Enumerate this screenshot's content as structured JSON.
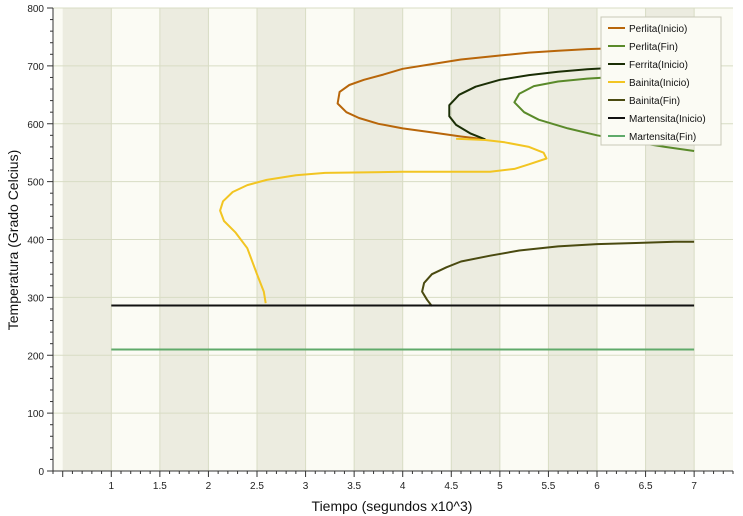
{
  "chart_data": {
    "type": "line",
    "title": "",
    "xlabel": "Tiempo (segundos x10^3)",
    "ylabel": "Temperatura (Grado Celcius)",
    "xlim": [
      0.4,
      7.4
    ],
    "ylim": [
      0,
      800
    ],
    "x_ticks": [
      "1",
      "1.5",
      "2",
      "2.5",
      "3",
      "3.5",
      "4",
      "4.5",
      "5",
      "5.5",
      "6",
      "6.5",
      "7"
    ],
    "y_ticks": [
      "0",
      "100",
      "200",
      "300",
      "400",
      "500",
      "600",
      "700",
      "800"
    ],
    "legend_position": "top-right",
    "background": {
      "stripe_light": "#fbfbf4",
      "stripe_dark": "#ecece0",
      "gridline": "#d8dcc4"
    },
    "series": [
      {
        "name": "Perlita(Inicio)",
        "color": "#b8660a",
        "x": [
          4.85,
          4.6,
          4.3,
          4.0,
          3.75,
          3.55,
          3.42,
          3.33,
          3.35,
          3.45,
          3.6,
          3.8,
          4.0,
          4.3,
          4.6,
          5.0,
          5.3,
          5.6,
          5.9,
          6.1,
          6.3
        ],
        "y": [
          573,
          578,
          585,
          592,
          600,
          610,
          620,
          635,
          655,
          667,
          676,
          685,
          695,
          703,
          711,
          718,
          723,
          726,
          729,
          730,
          731
        ]
      },
      {
        "name": "Perlita(Fin)",
        "color": "#5a8a2a",
        "x": [
          7.0,
          6.7,
          6.4,
          6.0,
          5.7,
          5.4,
          5.25,
          5.15,
          5.2,
          5.35,
          5.6,
          5.9,
          6.2,
          6.5,
          6.8
        ],
        "y": [
          553,
          560,
          568,
          580,
          592,
          607,
          620,
          637,
          652,
          665,
          673,
          678,
          681,
          682,
          683
        ]
      },
      {
        "name": "Ferrita(Inicio)",
        "color": "#1a2e05",
        "x": [
          4.85,
          4.7,
          4.55,
          4.48,
          4.48,
          4.58,
          4.75,
          5.0,
          5.3,
          5.6,
          5.9,
          6.2,
          6.5,
          6.8,
          7.0
        ],
        "y": [
          573,
          583,
          598,
          613,
          632,
          650,
          664,
          676,
          684,
          690,
          694,
          697,
          698,
          698,
          698
        ]
      },
      {
        "name": "Bainita(Inicio)",
        "color": "#f2c522",
        "x": [
          2.59,
          2.57,
          2.5,
          2.4,
          2.28,
          2.16,
          2.12,
          2.15,
          2.25,
          2.4,
          2.6,
          2.9,
          3.2,
          3.6,
          4.0,
          4.3,
          4.6,
          4.9,
          5.15,
          5.3,
          5.48,
          5.45,
          5.3,
          5.05,
          4.85,
          4.7,
          4.55
        ],
        "y": [
          290,
          310,
          340,
          385,
          412,
          432,
          450,
          466,
          482,
          494,
          503,
          511,
          515,
          516,
          517,
          517,
          517,
          517,
          522,
          530,
          540,
          550,
          560,
          568,
          572,
          573,
          574
        ]
      },
      {
        "name": "Bainita(Fin)",
        "color": "#4a4a10",
        "x": [
          4.3,
          4.25,
          4.2,
          4.22,
          4.3,
          4.45,
          4.6,
          4.9,
          5.2,
          5.6,
          6.0,
          6.4,
          6.8,
          7.0
        ],
        "y": [
          285,
          296,
          310,
          325,
          340,
          352,
          362,
          372,
          381,
          388,
          392,
          394,
          396,
          396
        ]
      },
      {
        "name": "Martensita(Inicio)",
        "color": "#111111",
        "x": [
          1.0,
          2.0,
          3.0,
          4.0,
          5.0,
          6.0,
          7.0
        ],
        "y": [
          286,
          286,
          286,
          286,
          286,
          286,
          286
        ]
      },
      {
        "name": "Martensita(Fin)",
        "color": "#5faa6a",
        "x": [
          1.0,
          2.0,
          3.0,
          4.0,
          5.0,
          6.0,
          7.0
        ],
        "y": [
          210,
          210,
          210,
          210,
          210,
          210,
          210
        ]
      }
    ]
  }
}
